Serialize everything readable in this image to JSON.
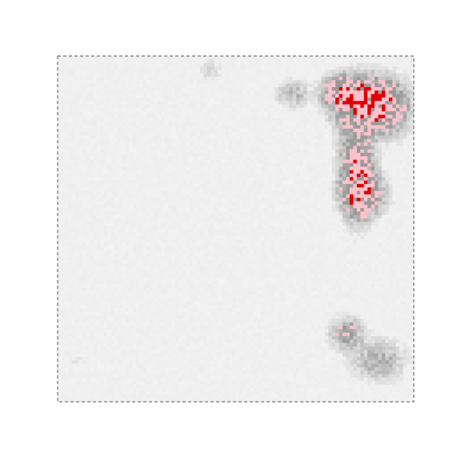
{
  "chart_data": {
    "type": "heatmap",
    "title": "",
    "xlabel": "",
    "ylabel": "",
    "axes_visible": false,
    "frame": "dashed",
    "grid": false,
    "legend": "none",
    "grid_size": [
      100,
      100
    ],
    "colors": {
      "background": "#f2f2f2",
      "mid": "#9a9a9a",
      "high": "#ffc0cb",
      "peak": "#e00000",
      "frame": "#555555"
    },
    "value_range": [
      0,
      1
    ],
    "hotspots": [
      {
        "x": 0.85,
        "y": 0.13,
        "sx": 0.05,
        "sy": 0.045,
        "amp": 1.0
      },
      {
        "x": 0.79,
        "y": 0.1,
        "sx": 0.03,
        "sy": 0.025,
        "amp": 0.55
      },
      {
        "x": 0.93,
        "y": 0.15,
        "sx": 0.04,
        "sy": 0.05,
        "amp": 0.6
      },
      {
        "x": 0.84,
        "y": 0.32,
        "sx": 0.03,
        "sy": 0.09,
        "amp": 0.72
      },
      {
        "x": 0.86,
        "y": 0.4,
        "sx": 0.04,
        "sy": 0.04,
        "amp": 0.55
      },
      {
        "x": 0.66,
        "y": 0.11,
        "sx": 0.03,
        "sy": 0.025,
        "amp": 0.28
      },
      {
        "x": 0.81,
        "y": 0.8,
        "sx": 0.03,
        "sy": 0.03,
        "amp": 0.4
      },
      {
        "x": 0.9,
        "y": 0.88,
        "sx": 0.05,
        "sy": 0.04,
        "amp": 0.3
      },
      {
        "x": 0.43,
        "y": 0.04,
        "sx": 0.02,
        "sy": 0.02,
        "amp": 0.15
      },
      {
        "x": 0.05,
        "y": 0.88,
        "sx": 0.03,
        "sy": 0.03,
        "amp": 0.06
      }
    ]
  }
}
